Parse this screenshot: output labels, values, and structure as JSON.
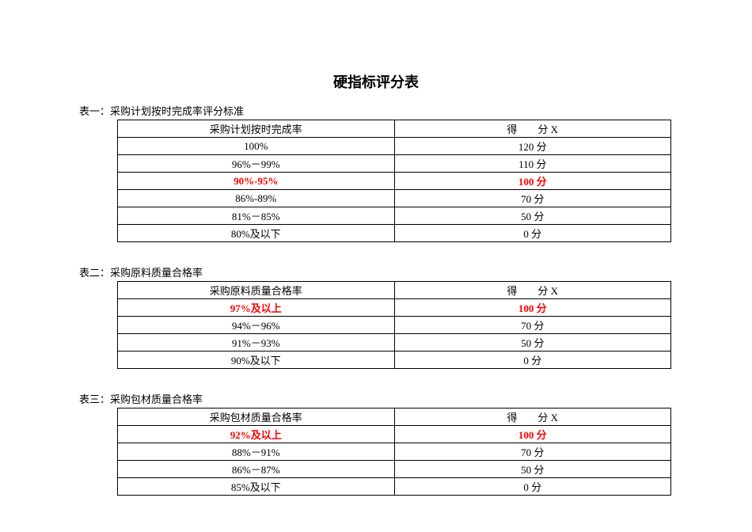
{
  "title": "硬指标评分表",
  "tables": [
    {
      "caption": "表一：采购计划按时完成率评分标准",
      "header_left": "采购计划按时完成率",
      "header_right": "得　　分 X",
      "rows": [
        {
          "left": "100%",
          "right": "120 分",
          "highlight": false
        },
        {
          "left": "96%－99%",
          "right": "110 分",
          "highlight": false
        },
        {
          "left": "90%-95%",
          "right": "100 分",
          "highlight": true
        },
        {
          "left": "86%-89%",
          "right": "70 分",
          "highlight": false
        },
        {
          "left": "81%－85%",
          "right": "50 分",
          "highlight": false
        },
        {
          "left": "80%及以下",
          "right": "0 分",
          "highlight": false
        }
      ]
    },
    {
      "caption": "表二：采购原料质量合格率",
      "header_left": "采购原料质量合格率",
      "header_right": "得　　分 X",
      "rows": [
        {
          "left": "97%及以上",
          "right": "100 分",
          "highlight": true
        },
        {
          "left": "94%－96%",
          "right": "70 分",
          "highlight": false
        },
        {
          "left": "91%－93%",
          "right": "50 分",
          "highlight": false
        },
        {
          "left": "90%及以下",
          "right": "0 分",
          "highlight": false
        }
      ]
    },
    {
      "caption": "表三：采购包材质量合格率",
      "header_left": "采购包材质量合格率",
      "header_right": "得　　分 X",
      "rows": [
        {
          "left": "92%及以上",
          "right": "100 分",
          "highlight": true
        },
        {
          "left": "88%－91%",
          "right": "70 分",
          "highlight": false
        },
        {
          "left": "86%－87%",
          "right": "50 分",
          "highlight": false
        },
        {
          "left": "85%及以下",
          "right": "0 分",
          "highlight": false
        }
      ]
    }
  ],
  "colors": {
    "text": "#000000",
    "highlight": "#ff0000",
    "border": "#000000",
    "background": "#ffffff"
  }
}
